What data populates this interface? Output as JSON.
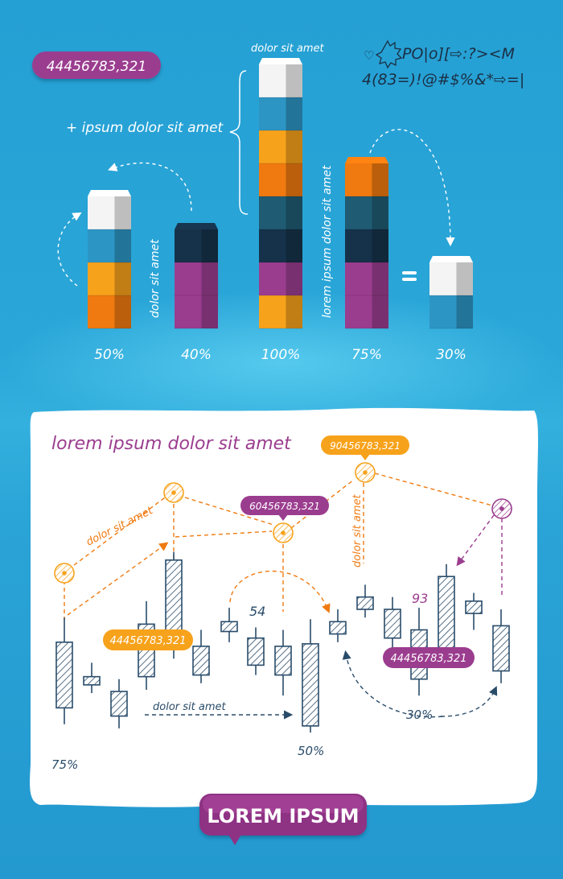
{
  "top": {
    "badge": "44456783,321",
    "note_plus": "+ ipsum dolor sit amet",
    "note_top": "dolor sit amet",
    "note_vertical_1": "dolor sit amet",
    "note_vertical_2": "lorem ipsum dolor sit amet",
    "symbols_line1": "PO|o][⇨:?><M",
    "symbols_line2": "4(83=)!@#$%&*⇨=|"
  },
  "chart_data": [
    {
      "type": "bar",
      "categories": [
        "50%",
        "40%",
        "100%",
        "75%",
        "30%"
      ],
      "values": [
        50,
        40,
        100,
        75,
        30
      ],
      "unit_blocks": [
        4,
        3,
        8,
        5,
        2
      ],
      "xlabel": "",
      "ylabel": "",
      "grid": false,
      "colors": {
        "white": "#f4f4f4",
        "teal": "#2d95c4",
        "orange": "#f7a21b",
        "dark-orange": "#f07a10",
        "slate": "#1f5c73",
        "navy": "#16324a",
        "purple": "#9b3d8f",
        "dark-purple": "#7a2f72"
      },
      "stacks": [
        [
          "dark-orange",
          "orange",
          "teal",
          "white"
        ],
        [
          "purple",
          "purple",
          "navy"
        ],
        [
          "orange",
          "purple",
          "navy",
          "slate",
          "dark-orange",
          "orange",
          "teal",
          "white"
        ],
        [
          "purple",
          "purple",
          "navy",
          "slate",
          "dark-orange"
        ],
        [
          "teal",
          "white"
        ]
      ]
    },
    {
      "type": "candlestick",
      "title": "lorem ipsum dolor sit amet",
      "grid": false,
      "candles": [
        {
          "high": 140,
          "open": 110,
          "close": 30,
          "low": 10
        },
        {
          "high": 85,
          "open": 68,
          "close": 58,
          "low": 48
        },
        {
          "high": 65,
          "open": 50,
          "close": 20,
          "low": 5
        },
        {
          "high": 160,
          "open": 132,
          "close": 68,
          "low": 52
        },
        {
          "high": 220,
          "open": 210,
          "close": 110,
          "low": 90
        },
        {
          "high": 125,
          "open": 105,
          "close": 70,
          "low": 60
        },
        {
          "high": 152,
          "open": 135,
          "close": 123,
          "low": 110
        },
        {
          "high": 128,
          "open": 115,
          "close": 82,
          "low": 70
        },
        {
          "high": 125,
          "open": 105,
          "close": 70,
          "low": 45
        },
        {
          "high": 138,
          "open": 108,
          "close": 8,
          "low": 0
        },
        {
          "high": 150,
          "open": 135,
          "close": 120,
          "low": 110
        },
        {
          "high": 180,
          "open": 165,
          "close": 150,
          "low": 140
        },
        {
          "high": 165,
          "open": 150,
          "close": 115,
          "low": 100
        },
        {
          "high": 152,
          "open": 125,
          "close": 65,
          "low": 45
        },
        {
          "high": 205,
          "open": 190,
          "close": 100,
          "low": 90
        },
        {
          "high": 170,
          "open": 160,
          "close": 145,
          "low": 125
        },
        {
          "high": 150,
          "open": 130,
          "close": 75,
          "low": 60
        }
      ],
      "markers": [
        {
          "label": "",
          "color": "#f7a21b"
        },
        {
          "label": "",
          "color": "#f7a21b"
        },
        {
          "label": "60456783,321",
          "color": "#f7a21b"
        },
        {
          "label": "90456783,321",
          "color": "#f7a21b"
        },
        {
          "label": "",
          "color": "#9b3d8f"
        }
      ],
      "badges": [
        {
          "text": "44456783,321",
          "color": "#f7a21b"
        },
        {
          "text": "44456783,321",
          "color": "#9b3d8f"
        }
      ],
      "annotations": {
        "dolor_orange": "dolor sit amet",
        "dolor_vertical": "dolor sit amet",
        "dolor_bottom": "dolor sit amet",
        "n54": "54",
        "n93": "93",
        "p75": "75%",
        "p50": "50%",
        "p30": "30%"
      }
    }
  ],
  "footer": {
    "button_label": "LOREM IPSUM"
  }
}
